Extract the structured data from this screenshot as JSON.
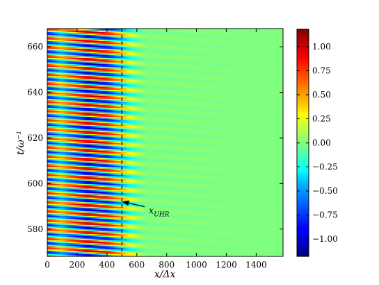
{
  "chart_data": {
    "type": "heatmap",
    "title": "",
    "xlabel": "x/Δx",
    "ylabel": "t/ω⁻¹",
    "xlim": [
      0,
      1580
    ],
    "ylim": [
      568,
      668
    ],
    "xticks": [
      {
        "value": 0,
        "label": "0"
      },
      {
        "value": 200,
        "label": "200"
      },
      {
        "value": 400,
        "label": "400"
      },
      {
        "value": 600,
        "label": "600"
      },
      {
        "value": 800,
        "label": "800"
      },
      {
        "value": 1000,
        "label": "1000"
      },
      {
        "value": 1200,
        "label": "1200"
      },
      {
        "value": 1400,
        "label": "1400"
      }
    ],
    "yticks": [
      {
        "value": 580,
        "label": "580"
      },
      {
        "value": 600,
        "label": "600"
      },
      {
        "value": 620,
        "label": "620"
      },
      {
        "value": 640,
        "label": "640"
      },
      {
        "value": 660,
        "label": "660"
      }
    ],
    "colorbar": {
      "range": [
        -1.18,
        1.18
      ],
      "ticks": [
        {
          "value": 1.0,
          "label": "1.00"
        },
        {
          "value": 0.75,
          "label": "0.75"
        },
        {
          "value": 0.5,
          "label": "0.50"
        },
        {
          "value": 0.25,
          "label": "0.25"
        },
        {
          "value": 0.0,
          "label": "0.00"
        },
        {
          "value": -0.25,
          "label": "−0.25"
        },
        {
          "value": -0.5,
          "label": "−0.50"
        },
        {
          "value": -0.75,
          "label": "−0.75"
        },
        {
          "value": -1.0,
          "label": "−1.00"
        }
      ],
      "colormap": "jet"
    },
    "field": {
      "description_free": true,
      "period_t": 4.0,
      "stripe_wavelength_x": 400,
      "region_strong_x": [
        0,
        500
      ],
      "decay_end_x": 700,
      "background_value": 0.0
    },
    "vline": {
      "x": 500,
      "style": "dashed",
      "color": "#000000"
    },
    "annotation": {
      "text": "x_UHR",
      "main": "x",
      "sub": "UHR",
      "arrow_to": {
        "x": 505,
        "y": 592
      },
      "text_at": {
        "x": 680,
        "y": 588
      }
    }
  }
}
